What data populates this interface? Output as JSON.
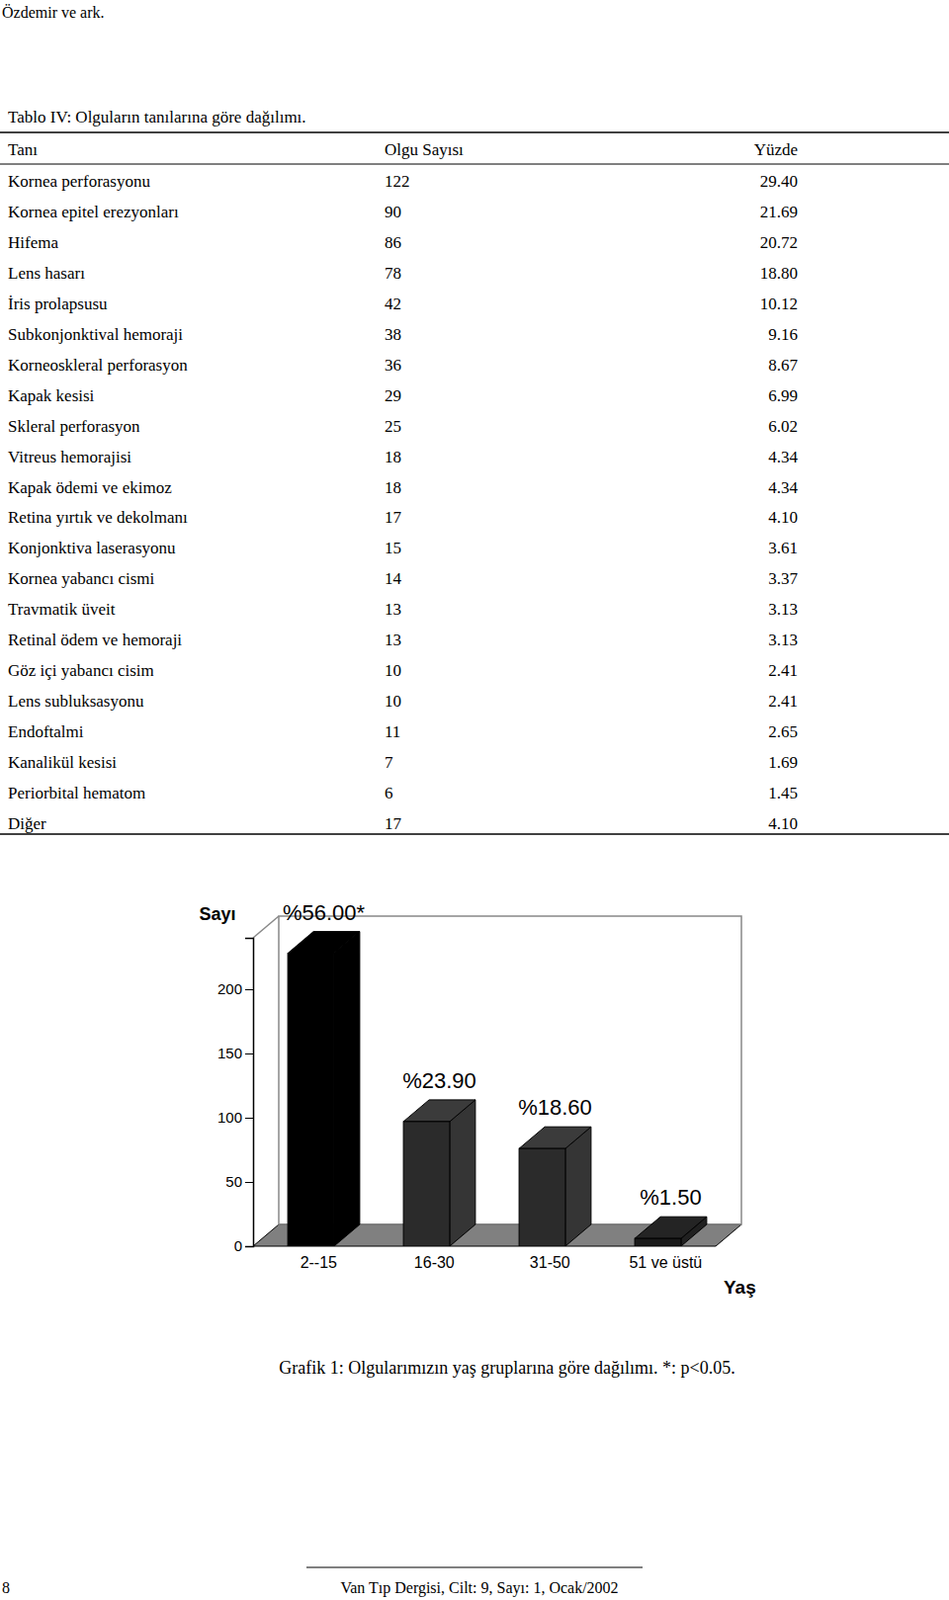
{
  "header": {
    "running_head": "Özdemir ve ark."
  },
  "table": {
    "title": "Tablo IV: Olguların tanılarına göre dağılımı.",
    "header": [
      "Tanı",
      "Olgu Sayısı",
      "Yüzde"
    ],
    "rows": [
      [
        "Kornea perforasyonu",
        "122",
        "29.40"
      ],
      [
        "Kornea epitel erezyonları",
        "90",
        "21.69"
      ],
      [
        "Hifema",
        "86",
        "20.72"
      ],
      [
        "Lens hasarı",
        "78",
        "18.80"
      ],
      [
        "İris prolapsusu",
        "42",
        "10.12"
      ],
      [
        "Subkonjonktival hemoraji",
        "38",
        "9.16"
      ],
      [
        "Korneoskleral perforasyon",
        "36",
        "8.67"
      ],
      [
        "Kapak kesisi",
        "29",
        "6.99"
      ],
      [
        "Skleral perforasyon",
        "25",
        "6.02"
      ],
      [
        "Vitreus hemorajisi",
        "18",
        "4.34"
      ],
      [
        "Kapak ödemi ve ekimoz",
        "18",
        "4.34"
      ],
      [
        "Retina yırtık ve dekolmanı",
        "17",
        "4.10"
      ],
      [
        "Konjonktiva laserasyonu",
        "15",
        "3.61"
      ],
      [
        "Kornea yabancı cismi",
        "14",
        "3.37"
      ],
      [
        "Travmatik üveit",
        "13",
        "3.13"
      ],
      [
        "Retinal ödem ve hemoraji",
        "13",
        "3.13"
      ],
      [
        "Göz içi yabancı cisim",
        "10",
        "2.41"
      ],
      [
        "Lens subluksasyonu",
        "10",
        "2.41"
      ],
      [
        "Endoftalmi",
        "11",
        "2.65"
      ],
      [
        "Kanalikül kesisi",
        "7",
        "1.69"
      ],
      [
        "Periorbital hematom",
        "6",
        "1.45"
      ],
      [
        "Diğer",
        "17",
        "4.10"
      ]
    ]
  },
  "chart_data": {
    "type": "bar",
    "y_label": "Sayı",
    "x_label": "Yaş",
    "categories": [
      "2--15",
      "16-30",
      "31-50",
      "51 ve üstü"
    ],
    "values": [
      228,
      97,
      76,
      6
    ],
    "colors": [
      "#000000",
      "#2b2b2b",
      "#2b2b2b",
      "#1a1a1a"
    ],
    "annotations": [
      "%56.00*",
      "%23.90",
      "%18.60",
      "%1.50"
    ],
    "ylim": [
      0,
      240
    ],
    "yticks": [
      0,
      50,
      100,
      150,
      200
    ]
  },
  "caption": "Grafik 1: Olgularımızın yaş gruplarına göre dağılımı. *: p<0.05.",
  "footer": {
    "page": "8",
    "journal": "Van Tıp Dergisi, Cilt: 9, Sayı: 1, Ocak/2002"
  }
}
